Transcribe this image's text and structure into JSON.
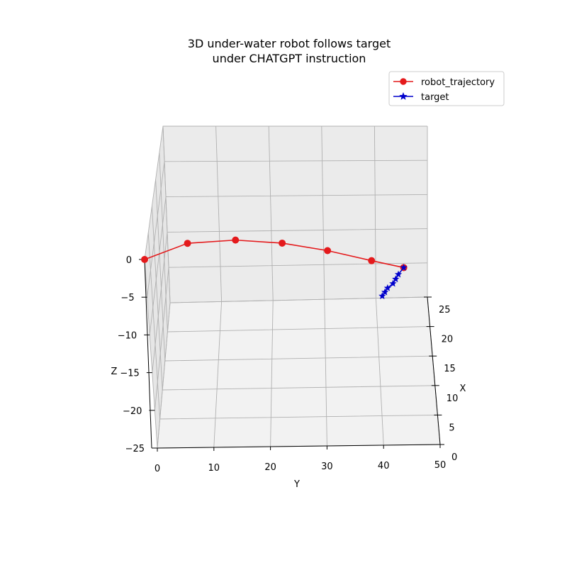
{
  "chart_data": {
    "type": "line",
    "projection": "3d",
    "title": "3D under-water robot follows target",
    "subtitle": "under CHATGPT instruction",
    "xlabel": "X",
    "ylabel": "Y",
    "zlabel": "Z",
    "xlim": [
      0,
      25
    ],
    "ylim": [
      0,
      50
    ],
    "zlim": [
      -25,
      0
    ],
    "x_ticks": [
      0,
      5,
      10,
      15,
      20,
      25
    ],
    "y_ticks": [
      0,
      10,
      20,
      30,
      40,
      50
    ],
    "z_ticks": [
      0,
      -5,
      -10,
      -15,
      -20,
      -25
    ],
    "x_tick_labels": [
      "0",
      "5",
      "10",
      "15",
      "20",
      "25"
    ],
    "y_tick_labels": [
      "0",
      "10",
      "20",
      "30",
      "40",
      "50"
    ],
    "z_tick_labels": [
      "0",
      "−5",
      "−10",
      "−15",
      "−20",
      "−25"
    ],
    "grid": true,
    "legend_position": "top-right",
    "series": [
      {
        "name": "robot_trajectory",
        "color": "#e41a1c",
        "marker": "circle",
        "points": [
          {
            "x": 0,
            "y": 0,
            "z": 0
          },
          {
            "x": 3,
            "y": 7,
            "z": -2
          },
          {
            "x": 6,
            "y": 15,
            "z": -5
          },
          {
            "x": 9,
            "y": 23,
            "z": -8
          },
          {
            "x": 12,
            "y": 31,
            "z": -11
          },
          {
            "x": 15,
            "y": 39,
            "z": -14
          },
          {
            "x": 17,
            "y": 45,
            "z": -16
          }
        ]
      },
      {
        "name": "target",
        "color": "#0000cc",
        "marker": "star",
        "points": [
          {
            "x": 17,
            "y": 45,
            "z": -16
          },
          {
            "x": 17.5,
            "y": 44,
            "z": -17
          },
          {
            "x": 18,
            "y": 43.5,
            "z": -17.8
          },
          {
            "x": 18.5,
            "y": 43,
            "z": -18.6
          },
          {
            "x": 19,
            "y": 42,
            "z": -19.4
          },
          {
            "x": 19.5,
            "y": 41.5,
            "z": -20.2
          },
          {
            "x": 20,
            "y": 41,
            "z": -21
          }
        ]
      }
    ]
  }
}
